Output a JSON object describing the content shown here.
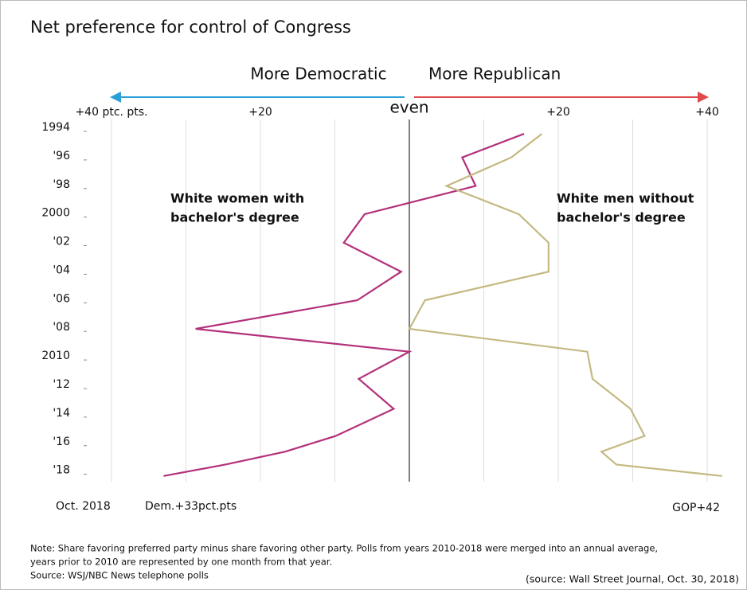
{
  "chart_data": {
    "type": "line",
    "title": "Net preference for control of Congress",
    "direction_labels": [
      "More Democratic",
      "More Republican"
    ],
    "x": [
      1994.45,
      1996.1,
      1998.1,
      2000.07,
      2002.07,
      2004.1,
      2006.1,
      2008.1,
      2009.7,
      2011.6,
      2013.7,
      2015.6,
      2016.7,
      2017.6,
      2018.4
    ],
    "series": [
      {
        "name": "White women with bachelor's degree",
        "name_lines": [
          "White women with",
          "bachelor's degree"
        ],
        "color": "#b3307a",
        "values": [
          15.4,
          7.1,
          8.9,
          -6.0,
          -8.8,
          -1.1,
          -7.0,
          -28.7,
          0,
          -6.8,
          -2.1,
          -9.9,
          -16.7,
          -24.7,
          -33
        ]
      },
      {
        "name": "White men without bachelor's degree",
        "name_lines": [
          "White men without",
          "bachelor's degree"
        ],
        "color": "#c4b983",
        "values": [
          17.8,
          13.7,
          5.0,
          14.7,
          18.7,
          18.7,
          2.1,
          0,
          23.9,
          24.6,
          29.7,
          31.6,
          25.8,
          27.8,
          42
        ]
      }
    ],
    "xlim": [
      -40,
      42
    ],
    "xticks": [
      {
        "value": -40,
        "label": "+40 ptc. pts."
      },
      {
        "value": -20,
        "label": "+20"
      },
      {
        "value": 0,
        "label": "even"
      },
      {
        "value": 20,
        "label": "+20"
      },
      {
        "value": 40,
        "label": "+40"
      }
    ],
    "xgrid": [
      -30,
      -10,
      10,
      30
    ],
    "ylim": [
      1994,
      2018.8
    ],
    "yticks": [
      1994,
      {
        "value": 1996,
        "label": "'96"
      },
      {
        "value": 1998,
        "label": "'98"
      },
      2000,
      {
        "value": 2002,
        "label": "'02"
      },
      {
        "value": 2004,
        "label": "'04"
      },
      {
        "value": 2006,
        "label": "'06"
      },
      {
        "value": 2008,
        "label": "'08"
      },
      2010,
      {
        "value": 2012,
        "label": "'12"
      },
      {
        "value": 2014,
        "label": "'14"
      },
      {
        "value": 2016,
        "label": "'16"
      },
      {
        "value": 2018,
        "label": "'18"
      }
    ],
    "bottom_labels": [
      "Oct. 2018",
      "Dem.+33pct.pts",
      "GOP+42"
    ],
    "note_lines": [
      "Note: Share favoring preferred party minus share favoring other party. Polls from years 2010-2018 were merged into an annual average,",
      "years prior to 2010 are represented by one month from that year.",
      "Source: WSJ/NBC News telephone polls"
    ],
    "source": "(source: Wall Street Journal, Oct. 30, 2018)"
  }
}
